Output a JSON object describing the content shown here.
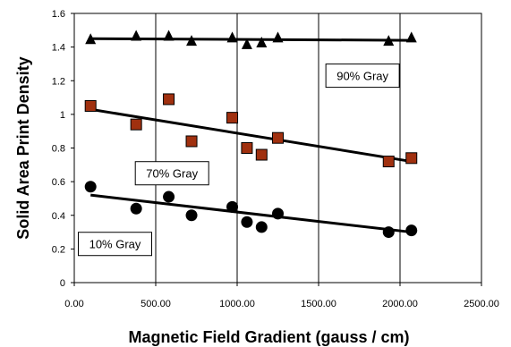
{
  "chart_data": {
    "type": "scatter",
    "title": "",
    "xlabel": "Magnetic Field Gradient (gauss / cm)",
    "ylabel": "Solid Area Print Density",
    "xlim": [
      0,
      2500
    ],
    "ylim": [
      0,
      1.6
    ],
    "xticks": [
      0,
      500,
      1000,
      1500,
      2000,
      2500
    ],
    "yticks": [
      0,
      0.2,
      0.4,
      0.6,
      0.8,
      1.0,
      1.2,
      1.4,
      1.6
    ],
    "xtick_labels": [
      "0.00",
      "500.00",
      "1000.00",
      "1500.00",
      "2000.00",
      "2500.00"
    ],
    "ytick_labels": [
      "0",
      "0.2",
      "0.4",
      "0.6",
      "0.8",
      "1",
      "1.2",
      "1.4",
      "1.6"
    ],
    "grid": "vertical",
    "series": [
      {
        "name": "90% Gray",
        "marker": "triangle",
        "color": "#000000",
        "x": [
          100,
          380,
          580,
          720,
          970,
          1060,
          1150,
          1250,
          1930,
          2070
        ],
        "y": [
          1.45,
          1.47,
          1.47,
          1.44,
          1.46,
          1.42,
          1.43,
          1.46,
          1.44,
          1.46
        ],
        "trendline": [
          [
            100,
            1.45
          ],
          [
            2070,
            1.44
          ]
        ]
      },
      {
        "name": "70% Gray",
        "marker": "square",
        "color": "#a0300f",
        "x": [
          100,
          380,
          580,
          720,
          970,
          1060,
          1150,
          1250,
          1930,
          2070
        ],
        "y": [
          1.05,
          0.94,
          1.09,
          0.84,
          0.98,
          0.8,
          0.76,
          0.86,
          0.72,
          0.74
        ],
        "trendline": [
          [
            100,
            1.03
          ],
          [
            2070,
            0.72
          ]
        ]
      },
      {
        "name": "10% Gray",
        "marker": "circle",
        "color": "#000000",
        "x": [
          100,
          380,
          580,
          720,
          970,
          1060,
          1150,
          1250,
          1930,
          2070
        ],
        "y": [
          0.57,
          0.44,
          0.51,
          0.4,
          0.45,
          0.36,
          0.33,
          0.41,
          0.3,
          0.31
        ],
        "trendline": [
          [
            100,
            0.52
          ],
          [
            2070,
            0.3
          ]
        ]
      }
    ],
    "annotations": [
      {
        "text": "90% Gray",
        "x": 1770,
        "y": 1.23
      },
      {
        "text": "70% Gray",
        "x": 600,
        "y": 0.65
      },
      {
        "text": "10% Gray",
        "x": 250,
        "y": 0.23
      }
    ]
  }
}
